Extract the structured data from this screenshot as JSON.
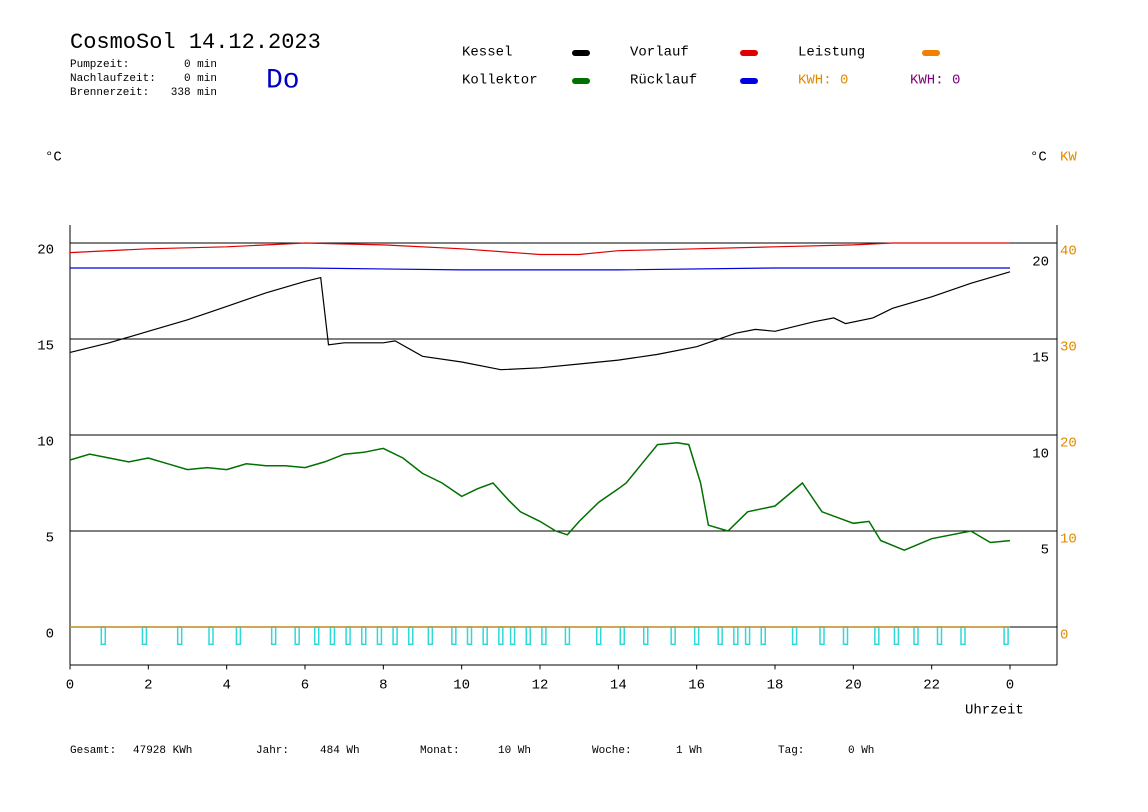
{
  "header": {
    "title": "CosmoSol 14.12.2023",
    "day": "Do",
    "stats": [
      [
        "Pumpzeit:",
        "0 min"
      ],
      [
        "Nachlaufzeit:",
        "0 min"
      ],
      [
        "Brennerzeit:",
        "338 min"
      ]
    ]
  },
  "kwh": [
    {
      "text": "KWH: 0",
      "color": "#e08a00"
    },
    {
      "text": "KWH: 0",
      "color": "#800080"
    }
  ],
  "footer": [
    [
      "Gesamt:",
      "47928 KWh"
    ],
    [
      "Jahr:",
      "484 Wh"
    ],
    [
      "Monat:",
      "10 Wh"
    ],
    [
      "Woche:",
      "1 Wh"
    ],
    [
      "Tag:",
      "0 Wh"
    ]
  ],
  "chart_data": {
    "type": "line",
    "ylabel": "°C",
    "y2label_left": "°C",
    "y2label": "KW",
    "xlabel": "Uhrzeit",
    "xlim": [
      0,
      25.2
    ],
    "xticks": [
      0,
      2,
      4,
      6,
      8,
      10,
      12,
      14,
      16,
      18,
      20,
      22,
      {
        "value": 24,
        "label": "0"
      }
    ],
    "ylim": [
      -2,
      21
    ],
    "yticks": [
      0,
      5,
      10,
      15,
      20
    ],
    "yticks_right": [
      5,
      10,
      15,
      20
    ],
    "y2lim": [
      -4,
      42
    ],
    "y2ticks": [
      0,
      10,
      20,
      30,
      40
    ],
    "grid": true,
    "series": [
      {
        "name": "Kessel",
        "color": "#000000",
        "x": [
          0,
          1,
          2,
          3,
          4,
          5,
          6,
          6.4,
          6.6,
          7,
          8,
          8.3,
          9,
          10,
          11,
          12,
          13,
          14,
          15,
          16,
          17,
          17.5,
          18,
          19,
          19.5,
          19.8,
          20.5,
          21,
          22,
          23,
          24
        ],
        "values": [
          14.3,
          14.8,
          15.4,
          16.0,
          16.7,
          17.4,
          18.0,
          18.2,
          14.7,
          14.8,
          14.8,
          14.9,
          14.1,
          13.8,
          13.4,
          13.5,
          13.7,
          13.9,
          14.2,
          14.6,
          15.3,
          15.5,
          15.4,
          15.9,
          16.1,
          15.8,
          16.1,
          16.6,
          17.2,
          17.9,
          18.5
        ]
      },
      {
        "name": "Vorlauf",
        "color": "#e00000",
        "x": [
          0,
          2,
          4,
          6,
          8,
          10,
          12,
          13,
          14,
          16,
          18,
          20,
          21,
          24
        ],
        "values": [
          19.5,
          19.7,
          19.8,
          20.0,
          19.9,
          19.7,
          19.4,
          19.4,
          19.6,
          19.7,
          19.8,
          19.9,
          20.0,
          20.0
        ]
      },
      {
        "name": "Leistung",
        "color": "#f08000",
        "axis": "y2",
        "x": [
          0,
          24
        ],
        "values": [
          0,
          0
        ]
      },
      {
        "name": "Kollektor",
        "color": "#007000",
        "x": [
          0,
          0.5,
          1,
          1.5,
          2,
          2.5,
          3,
          3.5,
          4,
          4.5,
          5,
          5.5,
          6,
          6.5,
          7,
          7.5,
          8,
          8.5,
          9,
          9.5,
          10,
          10.4,
          10.8,
          11.2,
          11.5,
          12,
          12.4,
          12.7,
          13,
          13.5,
          14,
          14.2,
          14.6,
          15,
          15.5,
          15.8,
          16.1,
          16.3,
          16.8,
          17.3,
          18,
          18.7,
          19.2,
          20,
          20.4,
          20.7,
          21.3,
          22,
          23,
          23.5,
          24
        ],
        "values": [
          8.7,
          9.0,
          8.8,
          8.6,
          8.8,
          8.5,
          8.2,
          8.3,
          8.2,
          8.5,
          8.4,
          8.4,
          8.3,
          8.6,
          9.0,
          9.1,
          9.3,
          8.8,
          8.0,
          7.5,
          6.8,
          7.2,
          7.5,
          6.6,
          6.0,
          5.5,
          5.0,
          4.8,
          5.5,
          6.5,
          7.2,
          7.5,
          8.5,
          9.5,
          9.6,
          9.5,
          7.5,
          5.3,
          5.0,
          6.0,
          6.3,
          7.5,
          6.0,
          5.4,
          5.5,
          4.5,
          4.0,
          4.6,
          5.0,
          4.4,
          4.5
        ]
      },
      {
        "name": "Rücklauf",
        "color": "#0000e0",
        "x": [
          0,
          6,
          10,
          14,
          18,
          24
        ],
        "values": [
          18.7,
          18.7,
          18.6,
          18.6,
          18.7,
          18.7
        ]
      }
    ],
    "pulses": {
      "color": "#30d8d8",
      "x": [
        0.85,
        1.9,
        2.8,
        3.6,
        4.3,
        5.2,
        5.8,
        6.3,
        6.7,
        7.1,
        7.5,
        7.9,
        8.3,
        8.7,
        9.2,
        9.8,
        10.2,
        10.6,
        11,
        11.3,
        11.7,
        12.1,
        12.7,
        13.5,
        14.1,
        14.7,
        15.4,
        16,
        16.6,
        17,
        17.3,
        17.7,
        18.5,
        19.2,
        19.8,
        20.6,
        21.1,
        21.6,
        22.2,
        22.8,
        23.9
      ]
    }
  }
}
